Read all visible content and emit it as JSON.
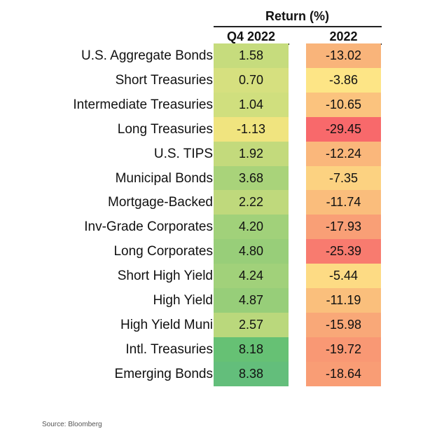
{
  "chart_data": {
    "type": "table",
    "title": "Return (%)",
    "columns": [
      "Q4 2022",
      "2022"
    ],
    "rows": [
      {
        "label": "U.S. Aggregate Bonds",
        "q4": "1.58",
        "year": "-13.02",
        "q4_color": "#c6dc7d",
        "year_color": "#f9b47a"
      },
      {
        "label": "Short Treasuries",
        "q4": "0.70",
        "year": "-3.86",
        "q4_color": "#d6e07f",
        "year_color": "#fde586"
      },
      {
        "label": "Intermediate Treasuries",
        "q4": "1.04",
        "year": "-10.65",
        "q4_color": "#d0df7e",
        "year_color": "#fbc37e"
      },
      {
        "label": "Long Treasuries",
        "q4": "-1.13",
        "year": "-29.45",
        "q4_color": "#f0e47f",
        "year_color": "#f8696b"
      },
      {
        "label": "U.S. TIPS",
        "q4": "1.92",
        "year": "-12.24",
        "q4_color": "#c3da7c",
        "year_color": "#fab77b"
      },
      {
        "label": "Municipal Bonds",
        "q4": "3.68",
        "year": "-7.35",
        "q4_color": "#a9d37a",
        "year_color": "#fcd281"
      },
      {
        "label": "Mortgage-Backed",
        "q4": "2.22",
        "year": "-11.74",
        "q4_color": "#bfd97c",
        "year_color": "#fabd7c"
      },
      {
        "label": "Inv-Grade Corporates",
        "q4": "4.20",
        "year": "-17.93",
        "q4_color": "#a1d17a",
        "year_color": "#f99f76"
      },
      {
        "label": "Long Corporates",
        "q4": "4.80",
        "year": "-25.39",
        "q4_color": "#98ce79",
        "year_color": "#f87b6f"
      },
      {
        "label": "Short High Yield",
        "q4": "4.24",
        "year": "-5.44",
        "q4_color": "#a1d17a",
        "year_color": "#fddb84"
      },
      {
        "label": "High Yield",
        "q4": "4.87",
        "year": "-11.19",
        "q4_color": "#97ce79",
        "year_color": "#fabf7c"
      },
      {
        "label": "High Yield Muni",
        "q4": "2.57",
        "year": "-15.98",
        "q4_color": "#bad87c",
        "year_color": "#f9a878"
      },
      {
        "label": "Intl. Treasuries",
        "q4": "8.18",
        "year": "-19.72",
        "q4_color": "#66c174",
        "year_color": "#f99874"
      },
      {
        "label": "Emerging Bonds",
        "q4": "8.38",
        "year": "-18.64",
        "q4_color": "#63be7b",
        "year_color": "#f99d75"
      }
    ]
  },
  "source": "Source: Bloomberg"
}
